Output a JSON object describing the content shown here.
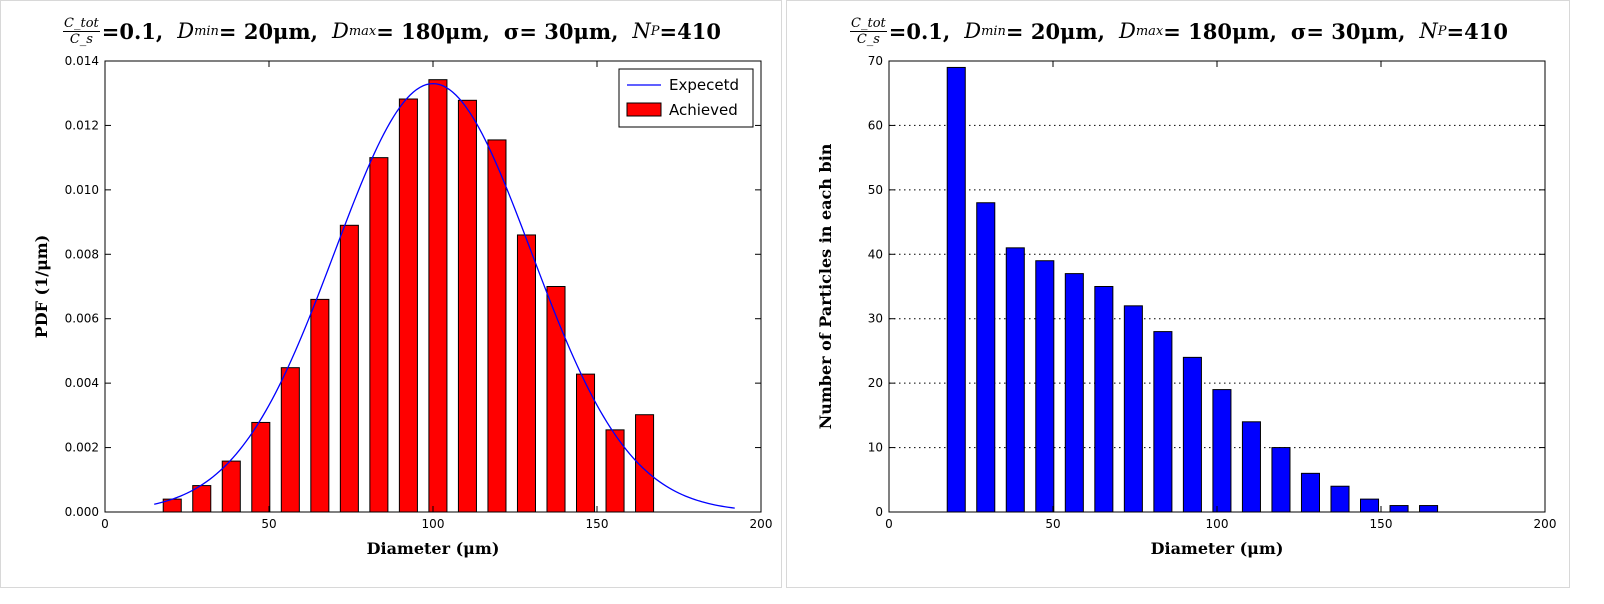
{
  "chart_data": [
    {
      "type": "bar",
      "title": {
        "ratio_numerator": "C_tot",
        "ratio_denominator": "C_s",
        "c_value": "=0.1,",
        "dmin_label": "D",
        "dmin_sub": "min",
        "dmin_value": "= 20μm,",
        "dmax_label": "D",
        "dmax_sub": "max",
        "dmax_value": "= 180μm,",
        "sigma_text": "σ= 30μm,",
        "np_label": "N",
        "np_sub": "P",
        "np_value": "=410"
      },
      "xlabel": "Diameter (μm)",
      "ylabel": "PDF (1/μm)",
      "xlim": [
        0,
        200
      ],
      "ylim": [
        0,
        0.014
      ],
      "xticks": [
        "0",
        "50",
        "100",
        "150",
        "200"
      ],
      "yticks": [
        "0.000",
        "0.002",
        "0.004",
        "0.006",
        "0.008",
        "0.010",
        "0.012",
        "0.014"
      ],
      "legend": {
        "position": "top-right",
        "entries": [
          "Expecetd",
          "Achieved"
        ]
      },
      "grid": false,
      "series": [
        {
          "name": "Achieved",
          "kind": "bar",
          "color": "#ff0000",
          "bar_width": 5.5,
          "x": [
            20.5,
            29.5,
            38.5,
            47.5,
            56.5,
            65.5,
            74.5,
            83.5,
            92.5,
            101.5,
            110.5,
            119.5,
            128.5,
            137.5,
            146.5,
            155.5,
            164.5
          ],
          "values": [
            0.0004,
            0.00082,
            0.00158,
            0.00278,
            0.00448,
            0.0066,
            0.0089,
            0.011,
            0.01282,
            0.01342,
            0.01278,
            0.01155,
            0.0086,
            0.007,
            0.00428,
            0.00255,
            0.00302
          ]
        },
        {
          "name": "Expecetd",
          "kind": "line",
          "color": "#0000ff",
          "mean": 100,
          "sigma": 30,
          "x_range": [
            15,
            192
          ]
        }
      ]
    },
    {
      "type": "bar",
      "title": {
        "ratio_numerator": "C_tot",
        "ratio_denominator": "C_s",
        "c_value": "=0.1,",
        "dmin_label": "D",
        "dmin_sub": "min",
        "dmin_value": "= 20μm,",
        "dmax_label": "D",
        "dmax_sub": "max",
        "dmax_value": "= 180μm,",
        "sigma_text": "σ= 30μm,",
        "np_label": "N",
        "np_sub": "P",
        "np_value": "=410"
      },
      "xlabel": "Diameter (μm)",
      "ylabel": "Number of Particles in each bin",
      "xlim": [
        0,
        200
      ],
      "ylim": [
        0,
        70
      ],
      "xticks": [
        "0",
        "50",
        "100",
        "150",
        "200"
      ],
      "yticks": [
        "0",
        "10",
        "20",
        "30",
        "40",
        "50",
        "60",
        "70"
      ],
      "grid": true,
      "grid_style": "dotted horizontal",
      "series": [
        {
          "kind": "bar",
          "color": "#0000ff",
          "bar_width": 5.5,
          "x": [
            20.5,
            29.5,
            38.5,
            47.5,
            56.5,
            65.5,
            74.5,
            83.5,
            92.5,
            101.5,
            110.5,
            119.5,
            128.5,
            137.5,
            146.5,
            155.5,
            164.5,
            173.5,
            182.5,
            191.5
          ],
          "values": [
            69,
            48,
            41,
            39,
            37,
            35,
            32,
            28,
            24,
            19,
            14,
            10,
            6,
            4,
            2,
            1,
            1,
            0,
            0,
            0
          ]
        }
      ]
    }
  ]
}
